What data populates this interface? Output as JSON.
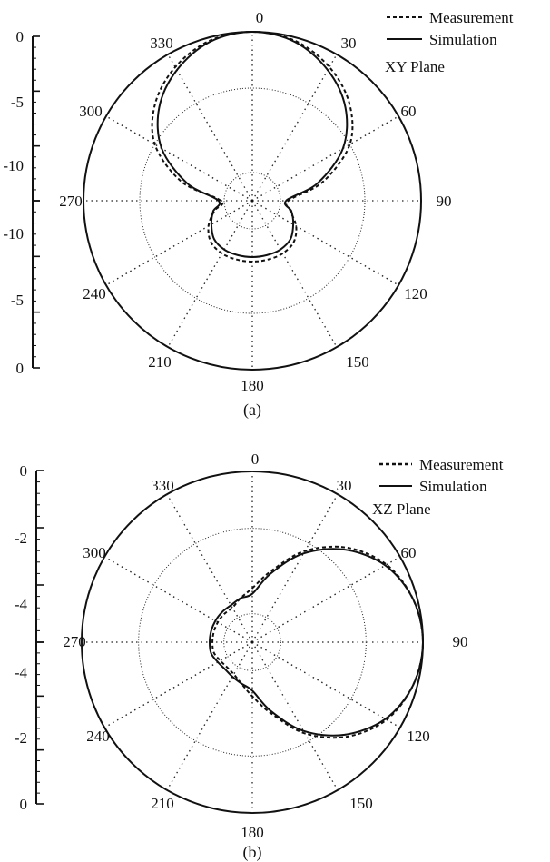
{
  "chart_data": [
    {
      "type": "polar-line",
      "panel_label": "(a)",
      "plane_label": "XY Plane",
      "angle_ticks": [
        "0",
        "30",
        "60",
        "90",
        "120",
        "150",
        "180",
        "210",
        "240",
        "270",
        "300",
        "330"
      ],
      "radial_axis": {
        "tick_labels_upper": [
          "0",
          "-5",
          "-10"
        ],
        "tick_labels_lower": [
          "-10",
          "-5",
          "0"
        ],
        "range_db": [
          -15,
          0
        ]
      },
      "grid": true,
      "legend": {
        "placement": "top-right",
        "entries": [
          {
            "name": "Measurement",
            "style": "dashed"
          },
          {
            "name": "Simulation",
            "style": "solid"
          }
        ]
      },
      "series": [
        {
          "name": "Measurement",
          "style": "dashed",
          "theta": [
            0,
            15,
            30,
            45,
            60,
            75,
            90,
            105,
            120,
            135,
            150,
            165,
            180,
            195,
            210,
            225,
            240,
            255,
            270,
            285,
            300,
            315,
            330,
            345
          ],
          "values": [
            0,
            -0.3,
            -1.3,
            -2.8,
            -5,
            -8.5,
            -11.8,
            -11.5,
            -10.5,
            -9.8,
            -9.6,
            -9.6,
            -9.6,
            -9.6,
            -9.6,
            -9.8,
            -10.5,
            -11.5,
            -12.2,
            -8.5,
            -5,
            -2.8,
            -1.3,
            -0.3
          ]
        },
        {
          "name": "Simulation",
          "style": "solid",
          "theta": [
            0,
            15,
            30,
            45,
            60,
            75,
            90,
            105,
            120,
            135,
            150,
            165,
            180,
            195,
            210,
            225,
            240,
            255,
            270,
            285,
            300,
            315,
            330,
            345
          ],
          "values": [
            0,
            -0.4,
            -1.6,
            -3.3,
            -5.7,
            -9,
            -12,
            -11.4,
            -10.8,
            -10.2,
            -10,
            -10,
            -10,
            -10,
            -10,
            -10.2,
            -10.8,
            -11.4,
            -12,
            -9,
            -5.7,
            -3.3,
            -1.6,
            -0.4
          ]
        }
      ]
    },
    {
      "type": "polar-line",
      "panel_label": "(b)",
      "plane_label": "XZ Plane",
      "angle_ticks": [
        "0",
        "30",
        "60",
        "90",
        "120",
        "150",
        "180",
        "210",
        "240",
        "270",
        "300",
        "330"
      ],
      "radial_axis": {
        "tick_labels_upper": [
          "0",
          "-2",
          "-4"
        ],
        "tick_labels_lower": [
          "-4",
          "-2",
          "0"
        ],
        "range_db": [
          -6,
          0
        ]
      },
      "grid": true,
      "legend": {
        "placement": "top-right",
        "entries": [
          {
            "name": "Measurement",
            "style": "dashed"
          },
          {
            "name": "Simulation",
            "style": "solid"
          }
        ]
      },
      "series": [
        {
          "name": "Measurement",
          "style": "dashed",
          "theta": [
            0,
            15,
            30,
            45,
            60,
            75,
            90,
            105,
            120,
            135,
            150,
            165,
            180,
            195,
            210,
            225,
            240,
            255,
            270,
            285,
            300,
            315,
            330,
            345
          ],
          "values": [
            -4.1,
            -3.4,
            -2.3,
            -1.3,
            -0.55,
            -0.15,
            0,
            -0.15,
            -0.55,
            -1.3,
            -2.3,
            -3.4,
            -4.1,
            -4.5,
            -4.7,
            -4.75,
            -4.7,
            -4.6,
            -4.6,
            -4.6,
            -4.6,
            -4.6,
            -4.6,
            -4.4
          ]
        },
        {
          "name": "Simulation",
          "style": "solid",
          "theta": [
            0,
            15,
            30,
            45,
            60,
            75,
            90,
            105,
            120,
            135,
            150,
            165,
            180,
            195,
            210,
            225,
            240,
            255,
            270,
            285,
            300,
            315,
            330,
            345
          ],
          "values": [
            -4.3,
            -3.5,
            -2.4,
            -1.4,
            -0.6,
            -0.15,
            0,
            -0.15,
            -0.6,
            -1.4,
            -2.4,
            -3.5,
            -4.3,
            -4.5,
            -4.6,
            -4.65,
            -4.6,
            -4.5,
            -4.5,
            -4.5,
            -4.5,
            -4.5,
            -4.5,
            -4.4
          ]
        }
      ]
    }
  ]
}
